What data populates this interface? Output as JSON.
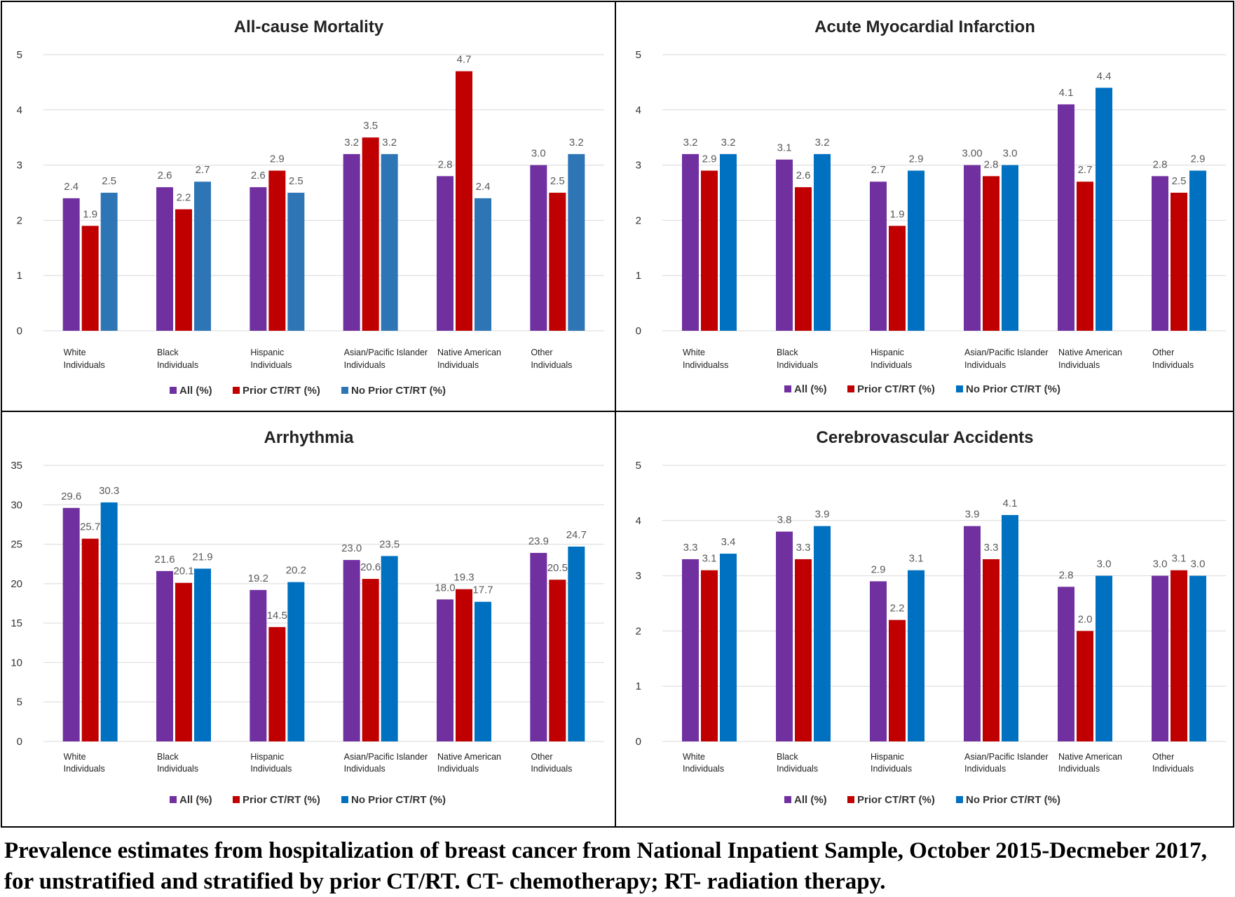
{
  "legend_labels": [
    "All (%)",
    "Prior CT/RT (%)",
    "No Prior CT/RT (%)"
  ],
  "colors": {
    "all": "#7030a0",
    "prior": "#c00000",
    "no_prior_a": "#2e75b6",
    "no_prior_b": "#0070c0"
  },
  "caption": "Prevalence estimates from hospitalization of breast cancer from National Inpatient Sample, October 2015-Decmeber 2017, for unstratified and stratified by prior CT/RT.  CT- chemotherapy; RT- radiation therapy.",
  "chart_data": [
    {
      "type": "bar",
      "title": "All-cause Mortality",
      "categories": [
        [
          "White",
          "Individuals"
        ],
        [
          "Black",
          "Individuals"
        ],
        [
          "Hispanic",
          "Individuals"
        ],
        [
          "Asian/Pacific Islander",
          "Individuals"
        ],
        [
          "Native American",
          "Individuals"
        ],
        [
          "Other",
          "Individuals"
        ]
      ],
      "ylim": [
        0,
        5
      ],
      "yticks": [
        "0",
        "1",
        "2",
        "3",
        "4",
        "5"
      ],
      "grid": true,
      "legend_position": "bottom",
      "series": [
        {
          "name": "All (%)",
          "color": "#7030a0",
          "values": [
            2.4,
            2.6,
            2.6,
            3.2,
            2.8,
            3.0
          ],
          "labels": [
            "2.4",
            "2.6",
            "2.6",
            "3.2",
            "2.8",
            "3.0"
          ]
        },
        {
          "name": "Prior CT/RT (%)",
          "color": "#c00000",
          "values": [
            1.9,
            2.2,
            2.9,
            3.5,
            4.7,
            2.5
          ],
          "labels": [
            "1.9",
            "2.2",
            "2.9",
            "3.5",
            "4.7",
            "2.5"
          ]
        },
        {
          "name": "No Prior CT/RT (%)",
          "color": "#2e75b6",
          "values": [
            2.5,
            2.7,
            2.5,
            3.2,
            2.4,
            3.2
          ],
          "labels": [
            "2.5",
            "2.7",
            "2.5",
            "3.2",
            "2.4",
            "3.2"
          ]
        }
      ]
    },
    {
      "type": "bar",
      "title": "Acute Myocardial Infarction",
      "categories": [
        [
          "White",
          "Individualss"
        ],
        [
          "Black",
          "Individuals"
        ],
        [
          "Hispanic",
          "Individuals"
        ],
        [
          "Asian/Pacific Islander",
          "Individuals"
        ],
        [
          "Native American",
          "Individuals"
        ],
        [
          "Other",
          "Individuals"
        ]
      ],
      "ylim": [
        0,
        5
      ],
      "yticks": [
        "0",
        "1",
        "2",
        "3",
        "4",
        "5"
      ],
      "grid": true,
      "legend_position": "bottom",
      "series": [
        {
          "name": "All (%)",
          "color": "#7030a0",
          "values": [
            3.2,
            3.1,
            2.7,
            3.0,
            4.1,
            2.8
          ],
          "labels": [
            "3.2",
            "3.1",
            "2.7",
            "3.00",
            "4.1",
            "2.8"
          ]
        },
        {
          "name": "Prior CT/RT (%)",
          "color": "#c00000",
          "values": [
            2.9,
            2.6,
            1.9,
            2.8,
            2.7,
            2.5
          ],
          "labels": [
            "2.9",
            "2.6",
            "1.9",
            "2.8",
            "2.7",
            "2.5"
          ]
        },
        {
          "name": "No Prior CT/RT (%)",
          "color": "#0070c0",
          "values": [
            3.2,
            3.2,
            2.9,
            3.0,
            4.4,
            2.9
          ],
          "labels": [
            "3.2",
            "3.2",
            "2.9",
            "3.0",
            "4.4",
            "2.9"
          ]
        }
      ]
    },
    {
      "type": "bar",
      "title": "Arrhythmia",
      "categories": [
        [
          "White",
          "Individuals"
        ],
        [
          "Black",
          "Individuals"
        ],
        [
          "Hispanic",
          "Individuals"
        ],
        [
          "Asian/Pacific Islander",
          "Individuals"
        ],
        [
          "Native American",
          "Individuals"
        ],
        [
          "Other",
          "Individuals"
        ]
      ],
      "ylim": [
        0,
        35
      ],
      "yticks": [
        "0",
        "5",
        "10",
        "15",
        "20",
        "25",
        "30",
        "35"
      ],
      "grid": true,
      "legend_position": "bottom",
      "series": [
        {
          "name": "All (%)",
          "color": "#7030a0",
          "values": [
            29.6,
            21.6,
            19.2,
            23.0,
            18.0,
            23.9
          ],
          "labels": [
            "29.6",
            "21.6",
            "19.2",
            "23.0",
            "18.0",
            "23.9"
          ]
        },
        {
          "name": "Prior CT/RT (%)",
          "color": "#c00000",
          "values": [
            25.7,
            20.1,
            14.5,
            20.6,
            19.3,
            20.5
          ],
          "labels": [
            "25.7",
            "20.1",
            "14.5",
            "20.6",
            "19.3",
            "20.5"
          ]
        },
        {
          "name": "No Prior CT/RT (%)",
          "color": "#0070c0",
          "values": [
            30.3,
            21.9,
            20.2,
            23.5,
            17.7,
            24.7
          ],
          "labels": [
            "30.3",
            "21.9",
            "20.2",
            "23.5",
            "17.7",
            "24.7"
          ]
        }
      ]
    },
    {
      "type": "bar",
      "title": "Cerebrovascular Accidents",
      "categories": [
        [
          "White",
          "Individuals"
        ],
        [
          "Black",
          "Individuals"
        ],
        [
          "Hispanic",
          "Individuals"
        ],
        [
          "Asian/Pacific Islander",
          "Individuals"
        ],
        [
          "Native American",
          "Individuals"
        ],
        [
          "Other",
          "Individuals"
        ]
      ],
      "ylim": [
        0,
        5
      ],
      "yticks": [
        "0",
        "1",
        "2",
        "3",
        "4",
        "5"
      ],
      "grid": true,
      "legend_position": "bottom",
      "series": [
        {
          "name": "All (%)",
          "color": "#7030a0",
          "values": [
            3.3,
            3.8,
            2.9,
            3.9,
            2.8,
            3.0
          ],
          "labels": [
            "3.3",
            "3.8",
            "2.9",
            "3.9",
            "2.8",
            "3.0"
          ]
        },
        {
          "name": "Prior CT/RT (%)",
          "color": "#c00000",
          "values": [
            3.1,
            3.3,
            2.2,
            3.3,
            2.0,
            3.1
          ],
          "labels": [
            "3.1",
            "3.3",
            "2.2",
            "3.3",
            "2.0",
            "3.1"
          ]
        },
        {
          "name": "No Prior CT/RT (%)",
          "color": "#0070c0",
          "values": [
            3.4,
            3.9,
            3.1,
            4.1,
            3.0,
            3.0
          ],
          "labels": [
            "3.4",
            "3.9",
            "3.1",
            "4.1",
            "3.0",
            "3.0"
          ]
        }
      ]
    }
  ]
}
